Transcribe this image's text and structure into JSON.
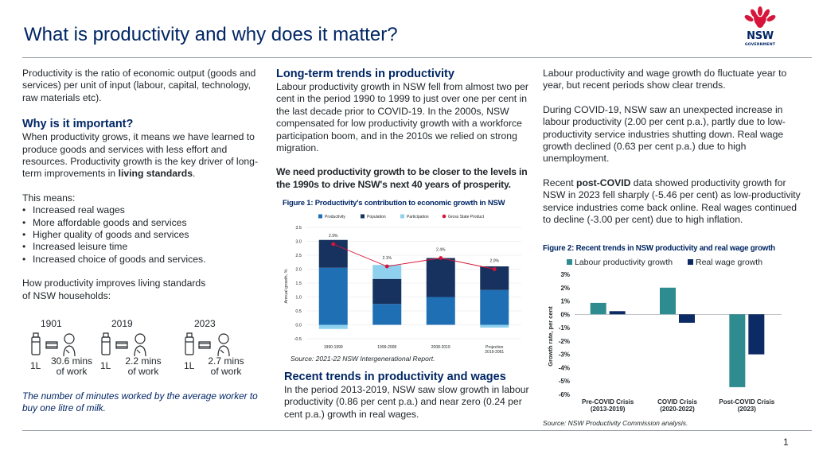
{
  "title": "What is productivity and why does it matter?",
  "logo": {
    "text": "NSW",
    "sub": "GOVERNMENT"
  },
  "col1": {
    "intro": "Productivity is the ratio of economic output (goods and services) per unit of input (labour, capital, technology, raw materials etc).",
    "why_heading": "Why is it important?",
    "why_text_1": "When productivity grows, it means we have learned to produce goods and services with less effort and resources. Productivity growth is the key driver of long-term improvements in ",
    "why_text_bold": "living standards",
    "why_text_end": ".",
    "means_label": "This means:",
    "bullets": [
      "Increased real wages",
      "More affordable goods and services",
      "Higher quality of goods and services",
      "Increased leisure time",
      "Increased choice of goods and services."
    ],
    "how_heading_line1": "How productivity improves living standards",
    "how_heading_line2": "of NSW households:",
    "milk": [
      {
        "year": "1901",
        "litre": "1L",
        "mins_line1": "30.6 mins",
        "mins_line2": "of work"
      },
      {
        "year": "2019",
        "litre": "1L",
        "mins_line1": "2.2 mins",
        "mins_line2": "of work"
      },
      {
        "year": "2023",
        "litre": "1L",
        "mins_line1": "2.7 mins",
        "mins_line2": "of work"
      }
    ],
    "milk_caption": "The number of minutes worked by the average worker to buy one litre of milk."
  },
  "col2": {
    "long_heading": "Long-term trends in productivity",
    "long_text": "Labour productivity growth in NSW fell from almost two per cent in the period 1990 to 1999 to just over one per cent in the last decade prior to COVID-19. In the 2000s, NSW compensated for low productivity growth with a workforce participation boom, and in the 2010s we relied on strong migration.",
    "need_text": "We need productivity growth to be closer to the levels in the 1990s to drive NSW's next 40 years of prosperity.",
    "fig1_title": "Figure 1: Productivity's contribution to economic growth in NSW",
    "fig1_source": "Source: 2021-22 NSW Intergenerational Report.",
    "recent_heading": "Recent trends in productivity and wages",
    "recent_text": "In the period 2013-2019, NSW saw slow growth in labour productivity (0.86 per cent p.a.) and near zero (0.24 per cent p.a.) growth in real wages."
  },
  "col3": {
    "p1": "Labour productivity and wage growth do fluctuate year to year, but recent periods show clear trends.",
    "p2_bold": "During COVID-19",
    "p2_rest": ", NSW saw an unexpected increase in labour productivity (2.00 per cent p.a.), partly due to low-productivity service industries shutting down. Real wage growth declined (0.63 per cent p.a.) due to high unemployment.",
    "p3_start": "Recent ",
    "p3_bold": "post-COVID",
    "p3_rest": " data showed productivity growth for NSW in 2023 fell sharply (-5.46 per cent) as low-productivity service industries come back online. Real wages continued to decline (-3.00 per cent) due to high inflation.",
    "fig2_title": "Figure 2: Recent trends in NSW productivity and real wage growth",
    "fig2_source": "Source: NSW Productivity Commission analysis."
  },
  "page_number": "1",
  "colors": {
    "navy": "#002664",
    "productivity": "#1f6fb5",
    "population": "#17325e",
    "participation": "#8fd0ef",
    "gsp": "#d7153a",
    "fig2_productivity": "#2e8b8f",
    "fig2_wage": "#0c2a63"
  },
  "chart_data": [
    {
      "type": "bar",
      "stacked": true,
      "title": "Figure 1: Productivity's contribution to economic growth in NSW",
      "ylabel": "Annual growth, %",
      "ylim": [
        -0.5,
        3.5
      ],
      "yticks": [
        "3.5",
        "3.0",
        "2.5",
        "2.0",
        "1.5",
        "1.0",
        "0.5",
        "0.0",
        "-0.5"
      ],
      "categories": [
        "1990-1999",
        "1999-2008",
        "2008-2019",
        "Projection 2019-2061"
      ],
      "category_labels": [
        [
          "1990-1999"
        ],
        [
          "1999-2008"
        ],
        [
          "2008-2019"
        ],
        [
          "Projection",
          "2019-2061"
        ]
      ],
      "series": [
        {
          "name": "Productivity",
          "values": [
            2.05,
            0.75,
            1.0,
            1.25
          ]
        },
        {
          "name": "Population",
          "values": [
            1.0,
            0.9,
            1.4,
            0.85
          ]
        },
        {
          "name": "Participation",
          "values": [
            -0.15,
            0.5,
            0.0,
            -0.1
          ]
        }
      ],
      "line": {
        "name": "Gross State Product",
        "values": [
          2.9,
          2.1,
          2.4,
          2.0
        ],
        "labels": [
          "2.9%",
          "2.1%",
          "2.4%",
          "2.0%"
        ]
      },
      "legend": "top"
    },
    {
      "type": "bar",
      "title": "Figure 2: Recent trends in NSW productivity and real wage growth",
      "ylabel": "Growth rate, per cent",
      "ylim": [
        -6,
        3
      ],
      "yticks": [
        "3%",
        "2%",
        "1%",
        "0%",
        "-1%",
        "-2%",
        "-3%",
        "-4%",
        "-5%",
        "-6%"
      ],
      "categories": [
        "Pre-COVID Crisis (2013-2019)",
        "COVID Crisis (2020-2022)",
        "Post-COVID Crisis (2023)"
      ],
      "category_labels": [
        [
          "Pre-COVID Crisis",
          "(2013-2019)"
        ],
        [
          "COVID Crisis",
          "(2020-2022)"
        ],
        [
          "Post-COVID Crisis",
          "(2023)"
        ]
      ],
      "series": [
        {
          "name": "Labour productivity growth",
          "values": [
            0.86,
            2.0,
            -5.46
          ]
        },
        {
          "name": "Real wage growth",
          "values": [
            0.24,
            -0.63,
            -3.0
          ]
        }
      ],
      "legend": "top"
    }
  ]
}
